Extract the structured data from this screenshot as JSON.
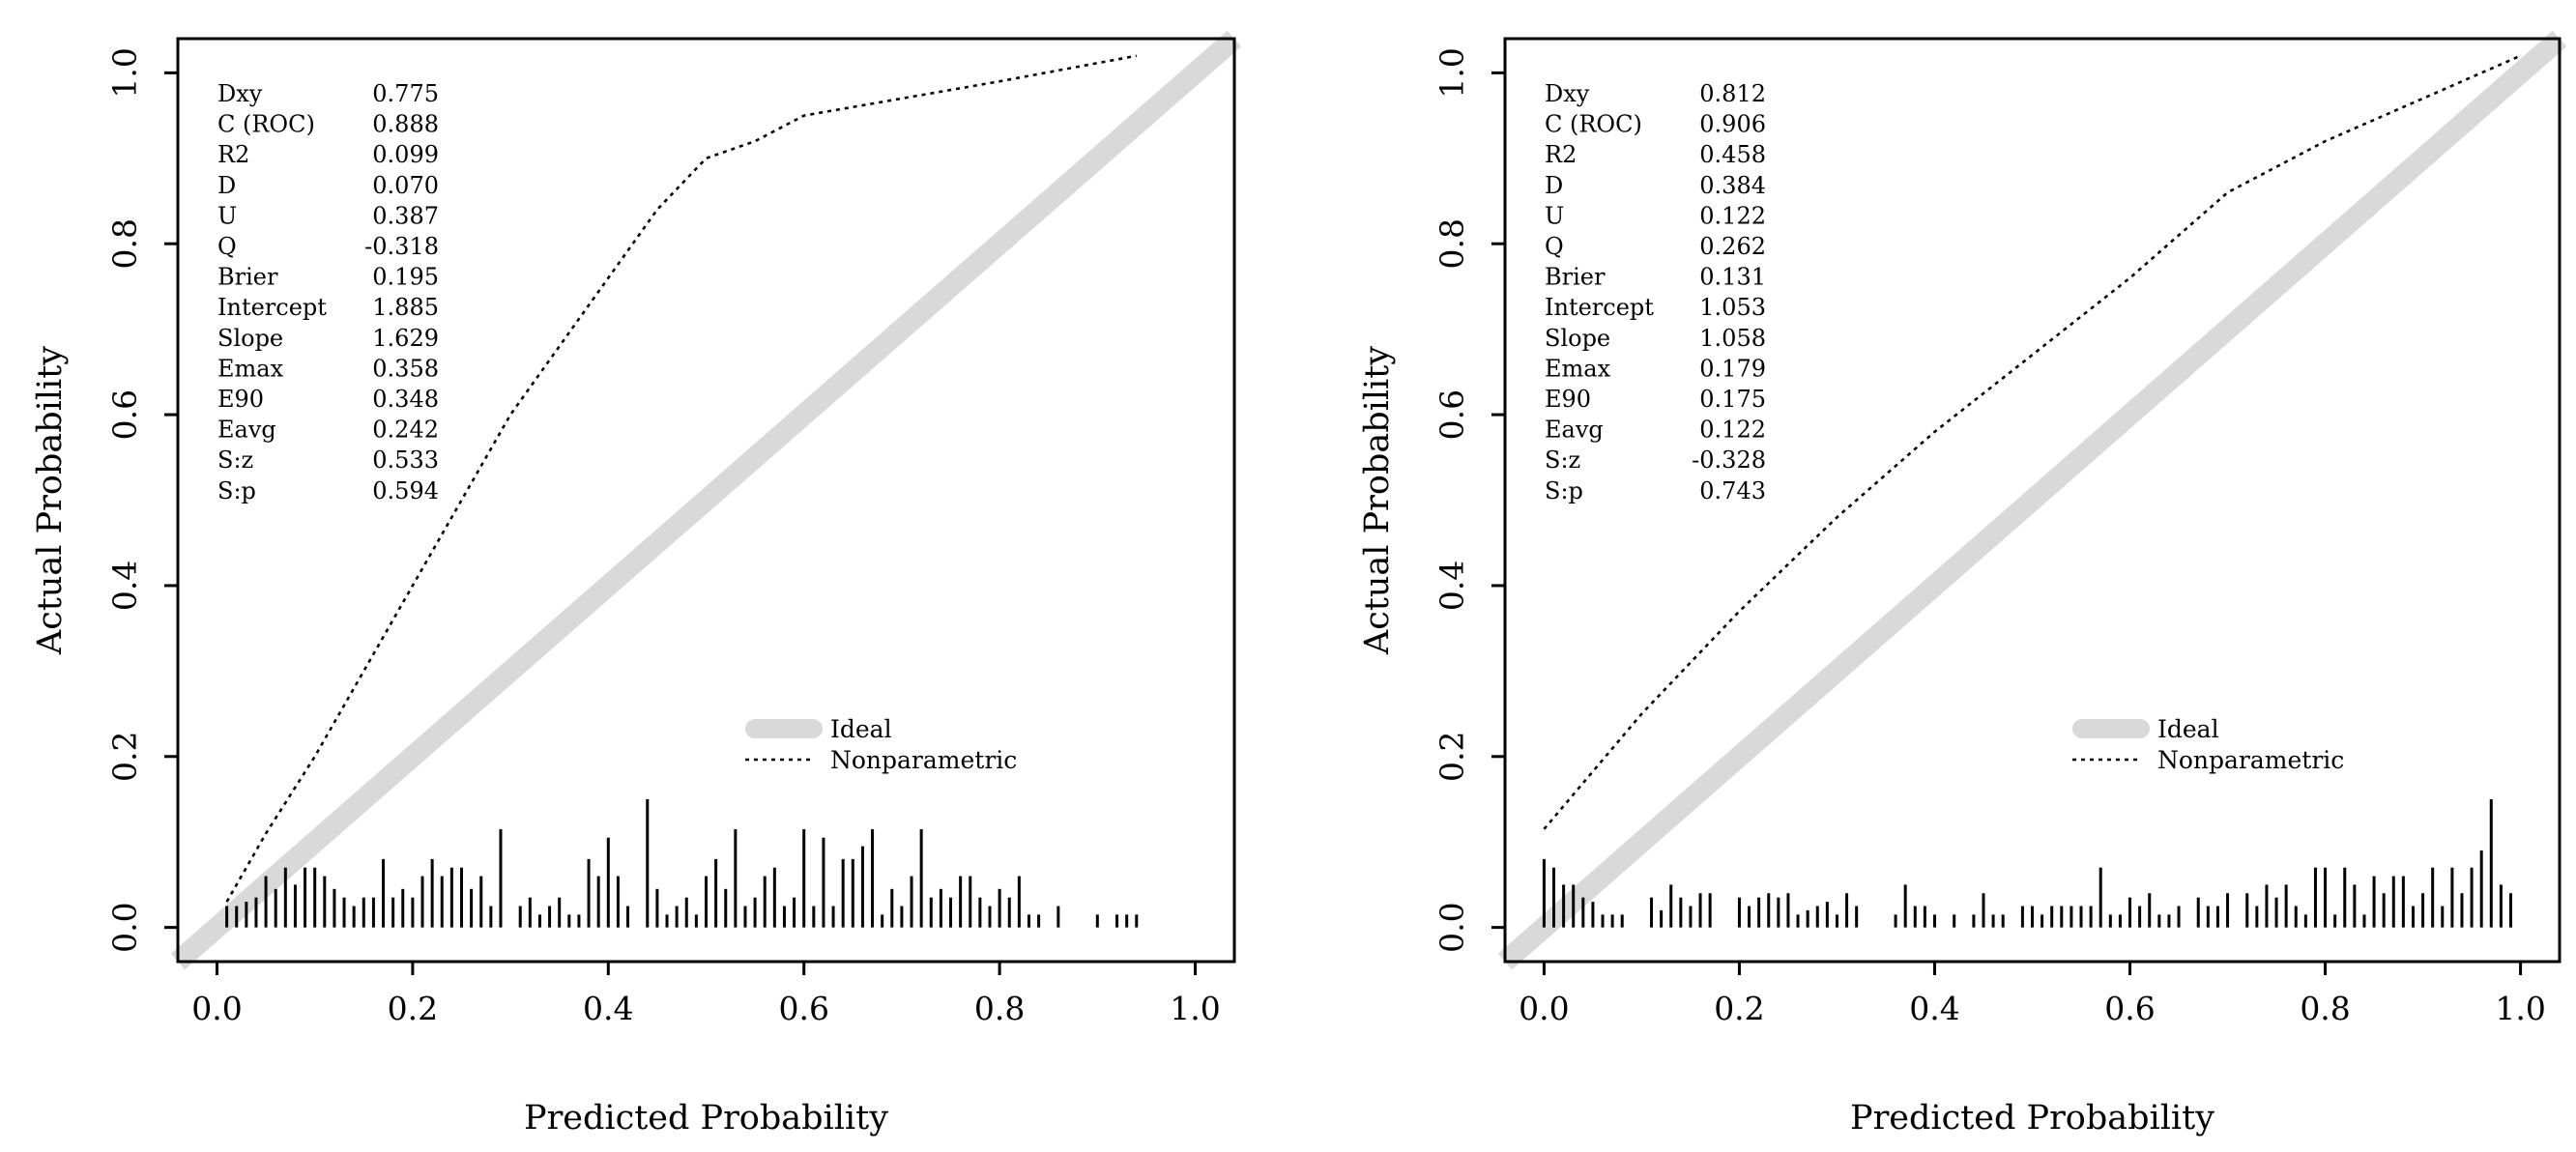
{
  "chart_data": [
    {
      "type": "line",
      "title": "",
      "xlabel": "Predicted Probability",
      "ylabel": "Actual Probability",
      "xlim": [
        -0.04,
        1.04
      ],
      "ylim": [
        -0.04,
        1.04
      ],
      "xticks": [
        "0.0",
        "0.2",
        "0.4",
        "0.6",
        "0.8",
        "1.0"
      ],
      "yticks": [
        "0.0",
        "0.2",
        "0.4",
        "0.6",
        "0.8",
        "1.0"
      ],
      "legend": {
        "position": "bottom-right",
        "entries": [
          "Ideal",
          "Nonparametric"
        ]
      },
      "stats": [
        {
          "label": "Dxy",
          "value": "0.775"
        },
        {
          "label": "C (ROC)",
          "value": "0.888"
        },
        {
          "label": "R2",
          "value": "0.099"
        },
        {
          "label": "D",
          "value": "0.070"
        },
        {
          "label": "U",
          "value": "0.387"
        },
        {
          "label": "Q",
          "value": "-0.318"
        },
        {
          "label": "Brier",
          "value": "0.195"
        },
        {
          "label": "Intercept",
          "value": "1.885"
        },
        {
          "label": "Slope",
          "value": "1.629"
        },
        {
          "label": "Emax",
          "value": "0.358"
        },
        {
          "label": "E90",
          "value": "0.348"
        },
        {
          "label": "Eavg",
          "value": "0.242"
        },
        {
          "label": "S:z",
          "value": "0.533"
        },
        {
          "label": "S:p",
          "value": "0.594"
        }
      ],
      "series": [
        {
          "name": "Ideal",
          "style": "thick-gray",
          "x": [
            -0.04,
            1.04
          ],
          "y": [
            -0.04,
            1.04
          ]
        },
        {
          "name": "Nonparametric",
          "style": "dotted",
          "x": [
            0.01,
            0.05,
            0.1,
            0.15,
            0.2,
            0.25,
            0.3,
            0.35,
            0.4,
            0.45,
            0.5,
            0.55,
            0.6,
            0.7,
            0.8,
            0.94
          ],
          "y": [
            0.03,
            0.11,
            0.2,
            0.3,
            0.4,
            0.5,
            0.6,
            0.68,
            0.76,
            0.84,
            0.9,
            0.92,
            0.95,
            0.97,
            0.99,
            1.02
          ]
        }
      ],
      "rug": {
        "x": [
          0.01,
          0.02,
          0.03,
          0.04,
          0.05,
          0.06,
          0.07,
          0.08,
          0.09,
          0.1,
          0.11,
          0.12,
          0.13,
          0.14,
          0.15,
          0.16,
          0.17,
          0.18,
          0.19,
          0.2,
          0.21,
          0.22,
          0.23,
          0.24,
          0.25,
          0.26,
          0.27,
          0.28,
          0.29,
          0.31,
          0.32,
          0.33,
          0.34,
          0.35,
          0.36,
          0.37,
          0.38,
          0.39,
          0.4,
          0.41,
          0.42,
          0.44,
          0.45,
          0.46,
          0.47,
          0.48,
          0.49,
          0.5,
          0.51,
          0.52,
          0.53,
          0.54,
          0.55,
          0.56,
          0.57,
          0.58,
          0.59,
          0.6,
          0.61,
          0.62,
          0.63,
          0.64,
          0.65,
          0.66,
          0.67,
          0.68,
          0.69,
          0.7,
          0.71,
          0.72,
          0.73,
          0.74,
          0.75,
          0.76,
          0.77,
          0.78,
          0.79,
          0.8,
          0.81,
          0.82,
          0.83,
          0.84,
          0.86,
          0.9,
          0.92,
          0.93,
          0.94
        ],
        "h": [
          0.025,
          0.025,
          0.03,
          0.035,
          0.06,
          0.045,
          0.07,
          0.05,
          0.07,
          0.07,
          0.06,
          0.045,
          0.035,
          0.025,
          0.035,
          0.035,
          0.08,
          0.035,
          0.045,
          0.035,
          0.06,
          0.08,
          0.06,
          0.07,
          0.07,
          0.045,
          0.06,
          0.025,
          0.115,
          0.025,
          0.035,
          0.015,
          0.025,
          0.035,
          0.015,
          0.015,
          0.08,
          0.06,
          0.105,
          0.06,
          0.025,
          0.15,
          0.045,
          0.015,
          0.025,
          0.035,
          0.015,
          0.06,
          0.08,
          0.045,
          0.115,
          0.025,
          0.035,
          0.06,
          0.07,
          0.025,
          0.035,
          0.115,
          0.025,
          0.105,
          0.025,
          0.08,
          0.08,
          0.095,
          0.115,
          0.015,
          0.045,
          0.025,
          0.06,
          0.115,
          0.035,
          0.045,
          0.035,
          0.06,
          0.06,
          0.035,
          0.025,
          0.045,
          0.035,
          0.06,
          0.015,
          0.015,
          0.025,
          0.015,
          0.015,
          0.015,
          0.015
        ]
      }
    },
    {
      "type": "line",
      "title": "",
      "xlabel": "Predicted Probability",
      "ylabel": "Actual Probability",
      "xlim": [
        -0.04,
        1.04
      ],
      "ylim": [
        -0.04,
        1.04
      ],
      "xticks": [
        "0.0",
        "0.2",
        "0.4",
        "0.6",
        "0.8",
        "1.0"
      ],
      "yticks": [
        "0.0",
        "0.2",
        "0.4",
        "0.6",
        "0.8",
        "1.0"
      ],
      "legend": {
        "position": "bottom-right",
        "entries": [
          "Ideal",
          "Nonparametric"
        ]
      },
      "stats": [
        {
          "label": "Dxy",
          "value": "0.812"
        },
        {
          "label": "C (ROC)",
          "value": "0.906"
        },
        {
          "label": "R2",
          "value": "0.458"
        },
        {
          "label": "D",
          "value": "0.384"
        },
        {
          "label": "U",
          "value": "0.122"
        },
        {
          "label": "Q",
          "value": "0.262"
        },
        {
          "label": "Brier",
          "value": "0.131"
        },
        {
          "label": "Intercept",
          "value": "1.053"
        },
        {
          "label": "Slope",
          "value": "1.058"
        },
        {
          "label": "Emax",
          "value": "0.179"
        },
        {
          "label": "E90",
          "value": "0.175"
        },
        {
          "label": "Eavg",
          "value": "0.122"
        },
        {
          "label": "S:z",
          "value": "-0.328"
        },
        {
          "label": "S:p",
          "value": "0.743"
        }
      ],
      "series": [
        {
          "name": "Ideal",
          "style": "thick-gray",
          "x": [
            -0.04,
            1.04
          ],
          "y": [
            -0.04,
            1.04
          ]
        },
        {
          "name": "Nonparametric",
          "style": "dotted",
          "x": [
            0.0,
            0.1,
            0.2,
            0.3,
            0.4,
            0.5,
            0.6,
            0.7,
            0.8,
            0.9,
            1.0
          ],
          "y": [
            0.115,
            0.25,
            0.37,
            0.48,
            0.58,
            0.67,
            0.76,
            0.86,
            0.92,
            0.97,
            1.02
          ]
        }
      ],
      "rug": {
        "x": [
          0.0,
          0.01,
          0.02,
          0.03,
          0.04,
          0.05,
          0.06,
          0.07,
          0.08,
          0.11,
          0.12,
          0.13,
          0.14,
          0.15,
          0.16,
          0.17,
          0.2,
          0.21,
          0.22,
          0.23,
          0.24,
          0.25,
          0.26,
          0.27,
          0.28,
          0.29,
          0.3,
          0.31,
          0.32,
          0.36,
          0.37,
          0.38,
          0.39,
          0.4,
          0.42,
          0.44,
          0.45,
          0.46,
          0.47,
          0.49,
          0.5,
          0.51,
          0.52,
          0.53,
          0.54,
          0.55,
          0.56,
          0.57,
          0.58,
          0.59,
          0.6,
          0.61,
          0.62,
          0.63,
          0.64,
          0.65,
          0.67,
          0.68,
          0.69,
          0.7,
          0.72,
          0.73,
          0.74,
          0.75,
          0.76,
          0.77,
          0.78,
          0.79,
          0.8,
          0.81,
          0.82,
          0.83,
          0.84,
          0.85,
          0.86,
          0.87,
          0.88,
          0.89,
          0.9,
          0.91,
          0.92,
          0.93,
          0.94,
          0.95,
          0.96,
          0.97,
          0.98,
          0.99
        ],
        "h": [
          0.08,
          0.07,
          0.05,
          0.05,
          0.035,
          0.03,
          0.015,
          0.015,
          0.015,
          0.035,
          0.02,
          0.05,
          0.035,
          0.025,
          0.04,
          0.04,
          0.035,
          0.025,
          0.035,
          0.04,
          0.035,
          0.04,
          0.015,
          0.02,
          0.025,
          0.03,
          0.015,
          0.04,
          0.025,
          0.015,
          0.05,
          0.025,
          0.025,
          0.015,
          0.015,
          0.015,
          0.04,
          0.015,
          0.015,
          0.025,
          0.025,
          0.015,
          0.025,
          0.025,
          0.025,
          0.025,
          0.025,
          0.07,
          0.015,
          0.015,
          0.035,
          0.025,
          0.04,
          0.015,
          0.015,
          0.025,
          0.035,
          0.025,
          0.025,
          0.04,
          0.04,
          0.025,
          0.05,
          0.035,
          0.05,
          0.025,
          0.015,
          0.07,
          0.07,
          0.015,
          0.07,
          0.05,
          0.015,
          0.06,
          0.04,
          0.06,
          0.06,
          0.025,
          0.04,
          0.07,
          0.025,
          0.07,
          0.04,
          0.07,
          0.09,
          0.15,
          0.05,
          0.04
        ]
      }
    }
  ]
}
